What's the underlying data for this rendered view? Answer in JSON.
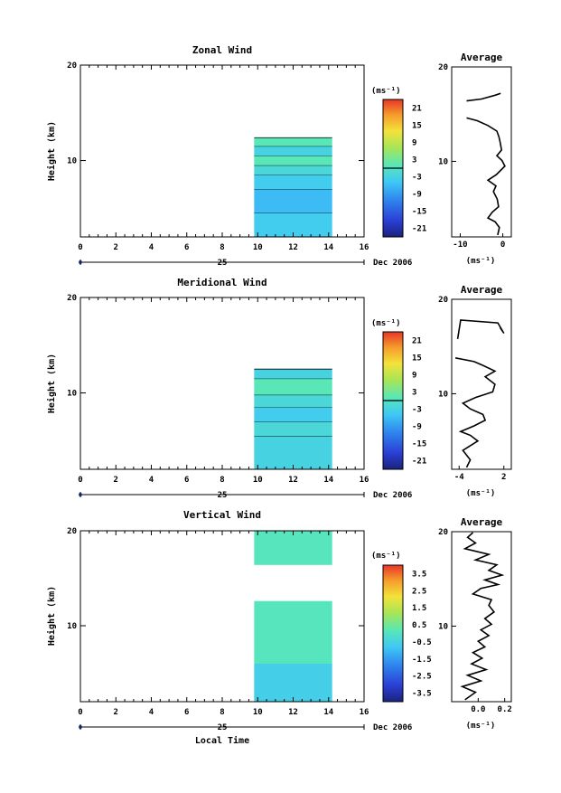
{
  "chart_data": [
    {
      "type": "heatmap",
      "id": "zonal",
      "title": "Zonal Wind",
      "ylabel": "Height (km)",
      "ylim": [
        2,
        20
      ],
      "yticks": [
        "10",
        "20"
      ],
      "xlim": [
        0,
        16
      ],
      "xticks": [
        "0",
        "2",
        "4",
        "6",
        "8",
        "10",
        "12",
        "14",
        "16"
      ],
      "date_tick": "25",
      "date_label": "Dec 2006",
      "xlabel": "",
      "data_time_range": [
        9.8,
        14.2
      ],
      "rows": [
        {
          "y0": 2.0,
          "y1": 4.5,
          "value": -4
        },
        {
          "y0": 4.5,
          "y1": 7.0,
          "value": -6
        },
        {
          "y0": 7.0,
          "y1": 8.5,
          "value": -4
        },
        {
          "y0": 8.5,
          "y1": 9.5,
          "value": -2
        },
        {
          "y0": 9.5,
          "y1": 10.5,
          "value": 1
        },
        {
          "y0": 10.5,
          "y1": 11.5,
          "value": -3
        },
        {
          "y0": 11.5,
          "y1": 12.4,
          "value": 1
        }
      ],
      "colorbar": {
        "unit": "(ms⁻¹)",
        "labels": [
          "21",
          "15",
          "9",
          "3",
          "-3",
          "-9",
          "-15",
          "-21"
        ],
        "range": [
          -24,
          24
        ]
      },
      "profile": {
        "title": "Average",
        "xlabel": "(ms⁻¹)",
        "xticks": [
          -10,
          0
        ],
        "xlim": [
          -12,
          2
        ],
        "ylim": [
          2,
          20
        ],
        "yticks": [
          "10",
          "20"
        ],
        "points": [
          [
            -1.2,
            2.2
          ],
          [
            -0.8,
            3
          ],
          [
            -1.8,
            3.6
          ],
          [
            -3.5,
            4
          ],
          [
            -2.5,
            4.6
          ],
          [
            -1,
            5.2
          ],
          [
            -1.3,
            6
          ],
          [
            -2.2,
            6.8
          ],
          [
            -1.6,
            7.4
          ],
          [
            -3.5,
            8
          ],
          [
            -1.5,
            8.6
          ],
          [
            0.5,
            9.5
          ],
          [
            -0.2,
            10.1
          ],
          [
            -1.4,
            10.6
          ],
          [
            -0.3,
            11.2
          ],
          [
            -0.6,
            12
          ],
          [
            -0.9,
            12.6
          ],
          [
            -1.4,
            13.2
          ],
          [
            -3.5,
            13.8
          ],
          [
            -6,
            14.3
          ],
          [
            -8.5,
            14.6
          ]
        ],
        "points_upper": [
          [
            -0.5,
            17.2
          ],
          [
            -1.8,
            17
          ],
          [
            -5,
            16.6
          ],
          [
            -8.5,
            16.4
          ]
        ]
      }
    },
    {
      "type": "heatmap",
      "id": "meridional",
      "title": "Meridional Wind",
      "ylabel": "Height (km)",
      "ylim": [
        2,
        20
      ],
      "yticks": [
        "10",
        "20"
      ],
      "xlim": [
        0,
        16
      ],
      "xticks": [
        "0",
        "2",
        "4",
        "6",
        "8",
        "10",
        "12",
        "14",
        "16"
      ],
      "date_tick": "25",
      "date_label": "Dec 2006",
      "xlabel": "",
      "data_time_range": [
        9.8,
        14.2
      ],
      "rows": [
        {
          "y0": 2.0,
          "y1": 5.5,
          "value": -3
        },
        {
          "y0": 5.5,
          "y1": 7.0,
          "value": -2
        },
        {
          "y0": 7.0,
          "y1": 8.5,
          "value": -4
        },
        {
          "y0": 8.5,
          "y1": 9.8,
          "value": -2
        },
        {
          "y0": 9.8,
          "y1": 11.5,
          "value": 1
        },
        {
          "y0": 11.5,
          "y1": 12.5,
          "value": -3
        }
      ],
      "colorbar": {
        "unit": "(ms⁻¹)",
        "labels": [
          "21",
          "15",
          "9",
          "3",
          "-3",
          "-9",
          "-15",
          "-21"
        ],
        "range": [
          -24,
          24
        ]
      },
      "profile": {
        "title": "Average",
        "xlabel": "(ms⁻¹)",
        "xticks": [
          -4,
          2
        ],
        "xlim": [
          -5,
          3
        ],
        "ylim": [
          2,
          20
        ],
        "yticks": [
          "10",
          "20"
        ],
        "points": [
          [
            -3,
            2.2
          ],
          [
            -2.5,
            3
          ],
          [
            -3.5,
            4
          ],
          [
            -1.5,
            5
          ],
          [
            -2.5,
            5.6
          ],
          [
            -3.8,
            6
          ],
          [
            -2,
            6.6
          ],
          [
            -0.5,
            7.2
          ],
          [
            -0.8,
            7.8
          ],
          [
            -2.5,
            8.4
          ],
          [
            -3.5,
            9
          ],
          [
            -1.8,
            9.6
          ],
          [
            0.5,
            10.2
          ],
          [
            0.8,
            11
          ],
          [
            -0.5,
            11.8
          ],
          [
            0.8,
            12.4
          ],
          [
            -0.8,
            13
          ],
          [
            -2,
            13.4
          ],
          [
            -4.5,
            13.8
          ]
        ],
        "points_upper": [
          [
            -4.2,
            15.8
          ],
          [
            -3.8,
            17.8
          ],
          [
            1.2,
            17.5
          ],
          [
            2,
            16.4
          ],
          [
            1.5,
            17
          ]
        ]
      }
    },
    {
      "type": "heatmap",
      "id": "vertical",
      "title": "Vertical Wind",
      "ylabel": "Height (km)",
      "ylim": [
        2,
        20
      ],
      "yticks": [
        "10",
        "20"
      ],
      "xlim": [
        0,
        16
      ],
      "xticks": [
        "0",
        "2",
        "4",
        "6",
        "8",
        "10",
        "12",
        "14",
        "16"
      ],
      "date_tick": "25",
      "date_label": "Dec 2006",
      "xlabel": "Local Time",
      "data_time_range": [
        9.8,
        14.2
      ],
      "rows": [
        {
          "y0": 2.0,
          "y1": 6.0,
          "value": -0.6
        },
        {
          "y0": 6.0,
          "y1": 12.6,
          "value": 0.1
        },
        {
          "y0": 12.6,
          "y1": 16.4,
          "value": null
        },
        {
          "y0": 16.4,
          "y1": 20.0,
          "value": 0.1
        }
      ],
      "colorbar": {
        "unit": "(ms⁻¹)",
        "labels": [
          "3.5",
          "2.5",
          "1.5",
          "0.5",
          "-0.5",
          "-1.5",
          "-2.5",
          "-3.5"
        ],
        "range": [
          -4,
          4
        ]
      },
      "profile": {
        "title": "Average",
        "xlabel": "(ms⁻¹)",
        "xticks": [
          0.0,
          0.2
        ],
        "xlim": [
          -0.2,
          0.25
        ],
        "ylim": [
          2,
          20
        ],
        "yticks": [
          "10",
          "20"
        ],
        "points": [
          [
            -0.1,
            2.2
          ],
          [
            -0.02,
            3
          ],
          [
            -0.12,
            3.6
          ],
          [
            0.02,
            4.2
          ],
          [
            -0.08,
            4.8
          ],
          [
            0.06,
            5.4
          ],
          [
            -0.05,
            6
          ],
          [
            0.03,
            6.6
          ],
          [
            -0.04,
            7.2
          ],
          [
            0.05,
            7.8
          ],
          [
            0.0,
            8.4
          ],
          [
            0.08,
            9
          ],
          [
            0.02,
            9.6
          ],
          [
            0.1,
            10.2
          ],
          [
            0.05,
            10.8
          ],
          [
            0.12,
            11.5
          ],
          [
            0.08,
            12.2
          ],
          [
            0.1,
            12.8
          ],
          [
            -0.04,
            13.4
          ],
          [
            0.02,
            14
          ],
          [
            0.15,
            14.4
          ],
          [
            0.05,
            14.9
          ],
          [
            0.18,
            15.4
          ],
          [
            0.08,
            15.9
          ],
          [
            0.14,
            16.5
          ],
          [
            -0.02,
            17
          ],
          [
            0.08,
            17.6
          ],
          [
            -0.1,
            18.2
          ],
          [
            -0.02,
            18.8
          ],
          [
            -0.08,
            19.4
          ],
          [
            -0.04,
            19.9
          ]
        ]
      }
    }
  ]
}
